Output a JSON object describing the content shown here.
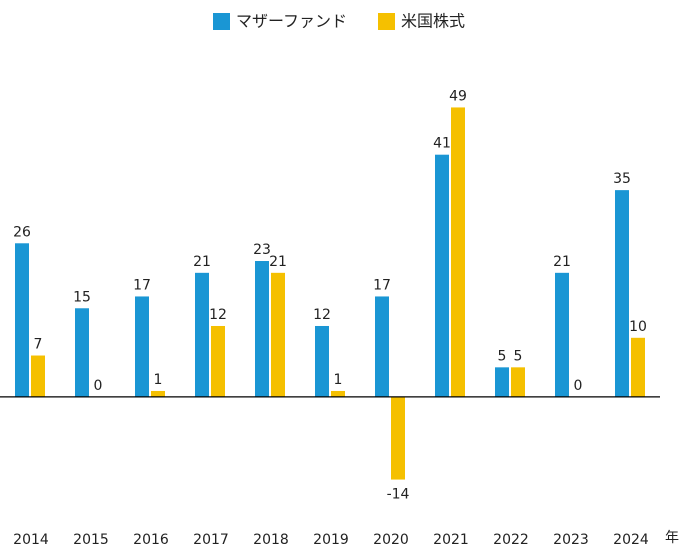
{
  "chart_data": {
    "type": "bar",
    "categories": [
      "2014",
      "2015",
      "2016",
      "2017",
      "2018",
      "2019",
      "2020",
      "2021",
      "2022",
      "2023",
      "2024"
    ],
    "x_label": "年",
    "series": [
      {
        "name": "マザーファンド",
        "color": "#1a96d4",
        "values": [
          26,
          15,
          17,
          21,
          23,
          12,
          17,
          41,
          5,
          21,
          35
        ]
      },
      {
        "name": "米国株式",
        "color": "#f5c000",
        "values": [
          7,
          0,
          1,
          12,
          21,
          1,
          -14,
          49,
          5,
          0,
          10
        ]
      }
    ],
    "ylim": [
      -20,
      55
    ]
  }
}
